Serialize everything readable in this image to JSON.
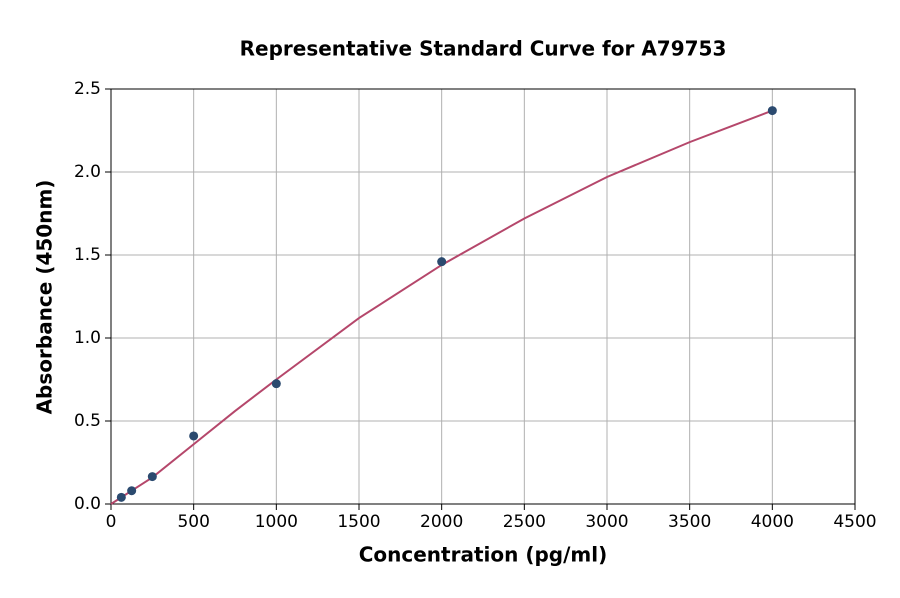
{
  "chart_data": {
    "type": "scatter",
    "title": "Representative Standard Curve for A79753",
    "xlabel": "Concentration (pg/ml)",
    "ylabel": "Absorbance (450nm)",
    "xlim": [
      0,
      4500
    ],
    "ylim": [
      0,
      2.5
    ],
    "xticks": [
      0,
      500,
      1000,
      1500,
      2000,
      2500,
      3000,
      3500,
      4000,
      4500
    ],
    "yticks": [
      {
        "value": 0,
        "label": "0.0"
      },
      0.5,
      {
        "value": 1,
        "label": "1.0"
      },
      1.5,
      {
        "value": 2,
        "label": "2.0"
      },
      2.5
    ],
    "grid": true,
    "series": [
      {
        "type": "scatter",
        "color": "#2b4a6f",
        "x": [
          62.5,
          125,
          250,
          500,
          1000,
          2000,
          4000
        ],
        "values": [
          0.04,
          0.08,
          0.165,
          0.41,
          0.725,
          1.46,
          2.37
        ]
      },
      {
        "type": "line",
        "color": "#b5476b",
        "x": [
          0,
          125,
          250,
          500,
          750,
          1000,
          1500,
          2000,
          2500,
          3000,
          3500,
          4000
        ],
        "values": [
          0.0,
          0.08,
          0.16,
          0.36,
          0.56,
          0.75,
          1.12,
          1.44,
          1.72,
          1.97,
          2.18,
          2.37
        ]
      }
    ]
  }
}
